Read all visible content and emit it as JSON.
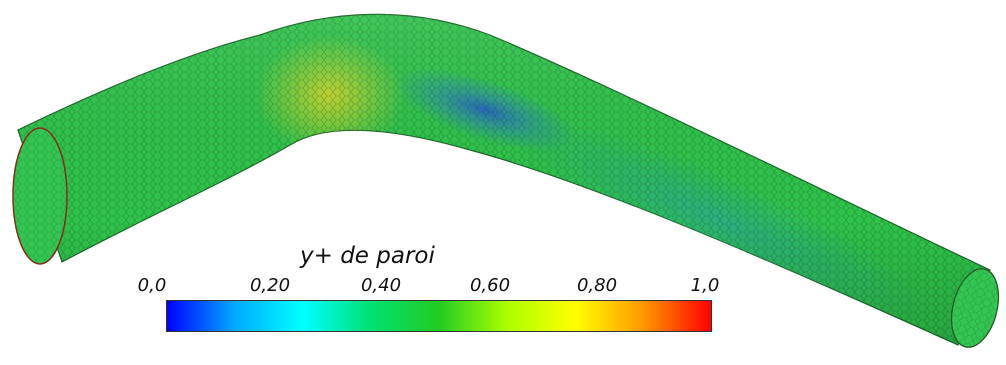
{
  "legend": {
    "title": "y+ de paroi",
    "ticks": [
      "0,0",
      "0,20",
      "0,40",
      "0,60",
      "0,80",
      "1,0"
    ],
    "range": [
      0.0,
      1.0
    ],
    "colormap": [
      "#0000ff",
      "#00aaff",
      "#00ffff",
      "#00e070",
      "#22cc22",
      "#aaff00",
      "#ffff00",
      "#ff9900",
      "#ff0000"
    ]
  },
  "surface": {
    "base_color": "#2ec34a",
    "high_color": "#b8d32a",
    "low_color": "#1f78b4",
    "mesh_color": "#1a5a28"
  }
}
